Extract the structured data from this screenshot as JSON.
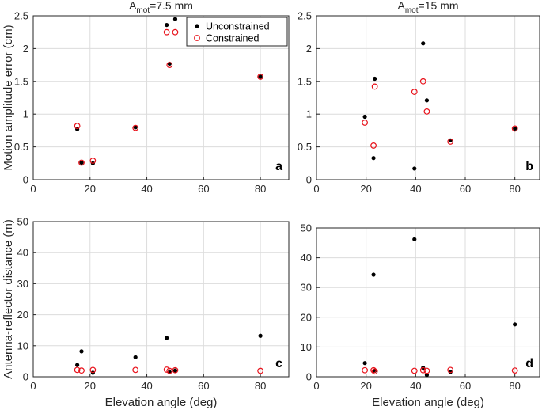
{
  "legend": {
    "unconstrained": "Unconstrained",
    "constrained": "Constrained"
  },
  "colors": {
    "unconstrained": "#000000",
    "constrained": "#e8111a",
    "grid": "#dcdcdc",
    "axis": "#262626"
  },
  "chart_data": [
    {
      "type": "scatter",
      "panel_label": "a",
      "title_base": "A",
      "title_sub": "mot",
      "title_rest": "=7.5 mm",
      "xlabel": "",
      "ylabel": "Motion amplitude error (cm)",
      "xlim": [
        0,
        90
      ],
      "ylim": [
        0,
        2.5
      ],
      "xticks": [
        0,
        20,
        40,
        60,
        80
      ],
      "yticks": [
        0,
        0.5,
        1,
        1.5,
        2,
        2.5
      ],
      "ytick_labels": [
        "0",
        "0.5",
        "1",
        "1.5",
        "2",
        "2.5"
      ],
      "grid": true,
      "legend_position": "top-right",
      "series": [
        {
          "name": "Unconstrained",
          "marker": "filled-dot",
          "x": [
            15.5,
            17,
            21,
            36,
            47,
            48,
            50,
            80
          ],
          "y": [
            0.77,
            0.26,
            0.25,
            0.8,
            2.36,
            1.77,
            2.45,
            1.57
          ]
        },
        {
          "name": "Constrained",
          "marker": "open-circle",
          "x": [
            15.5,
            17,
            21,
            36,
            47,
            48,
            50,
            80
          ],
          "y": [
            0.82,
            0.26,
            0.29,
            0.79,
            2.25,
            1.75,
            2.25,
            1.57
          ]
        }
      ]
    },
    {
      "type": "scatter",
      "panel_label": "b",
      "title_base": "A",
      "title_sub": "mot",
      "title_rest": "=15 mm",
      "xlabel": "",
      "ylabel": "",
      "xlim": [
        0,
        90
      ],
      "ylim": [
        0,
        2.5
      ],
      "xticks": [
        0,
        20,
        40,
        60,
        80
      ],
      "yticks": [
        0,
        0.5,
        1,
        1.5,
        2,
        2.5
      ],
      "ytick_labels": [
        "0",
        "0.5",
        "1",
        "1.5",
        "2",
        "2.5"
      ],
      "grid": true,
      "series": [
        {
          "name": "Unconstrained",
          "marker": "filled-dot",
          "x": [
            19.5,
            23,
            23.5,
            39.5,
            43,
            44.5,
            54,
            80
          ],
          "y": [
            0.96,
            0.33,
            1.54,
            0.17,
            2.08,
            1.21,
            0.6,
            0.78
          ]
        },
        {
          "name": "Constrained",
          "marker": "open-circle",
          "x": [
            19.5,
            23,
            23.5,
            39.5,
            43,
            44.5,
            54,
            80
          ],
          "y": [
            0.87,
            0.52,
            1.42,
            1.34,
            1.5,
            1.04,
            0.58,
            0.78
          ]
        }
      ]
    },
    {
      "type": "scatter",
      "panel_label": "c",
      "title_base": "",
      "title_sub": "",
      "title_rest": "",
      "xlabel": "Elevation angle (deg)",
      "ylabel": "Antenna-reflector distance (m)",
      "xlim": [
        0,
        90
      ],
      "ylim": [
        0,
        50
      ],
      "xticks": [
        0,
        20,
        40,
        60,
        80
      ],
      "yticks": [
        0,
        10,
        20,
        30,
        40,
        50
      ],
      "ytick_labels": [
        "0",
        "10",
        "20",
        "30",
        "40",
        "50"
      ],
      "grid": true,
      "series": [
        {
          "name": "Unconstrained",
          "marker": "filled-dot",
          "x": [
            15.5,
            17,
            21,
            36,
            47,
            48,
            50,
            80
          ],
          "y": [
            3.8,
            8.2,
            1.3,
            6.3,
            12.5,
            1.5,
            2.0,
            13.2
          ]
        },
        {
          "name": "Constrained",
          "marker": "open-circle",
          "x": [
            15.5,
            17,
            21,
            36,
            47,
            48,
            50,
            80
          ],
          "y": [
            2.2,
            2.0,
            2.2,
            2.2,
            2.3,
            1.9,
            2.1,
            1.9
          ]
        }
      ]
    },
    {
      "type": "scatter",
      "panel_label": "d",
      "title_base": "",
      "title_sub": "",
      "title_rest": "",
      "xlabel": "Elevation angle (deg)",
      "ylabel": "",
      "xlim": [
        0,
        90
      ],
      "ylim": [
        0,
        50
      ],
      "xticks": [
        0,
        20,
        40,
        60,
        80
      ],
      "yticks": [
        0,
        10,
        20,
        30,
        40,
        50
      ],
      "ytick_labels": [
        "0",
        "10",
        "20",
        "30",
        "40",
        "50"
      ],
      "grid": true,
      "series": [
        {
          "name": "Unconstrained",
          "marker": "filled-dot",
          "x": [
            19.5,
            23,
            23.5,
            39.5,
            43,
            44.5,
            54,
            80
          ],
          "y": [
            4.6,
            34.3,
            2.0,
            46.2,
            3.0,
            0.6,
            1.6,
            17.6
          ]
        },
        {
          "name": "Constrained",
          "marker": "open-circle",
          "x": [
            19.5,
            23,
            23.5,
            39.5,
            43,
            44.5,
            54,
            80
          ],
          "y": [
            2.2,
            2.2,
            1.8,
            2.0,
            2.2,
            2.0,
            2.3,
            2.1
          ]
        }
      ]
    }
  ]
}
